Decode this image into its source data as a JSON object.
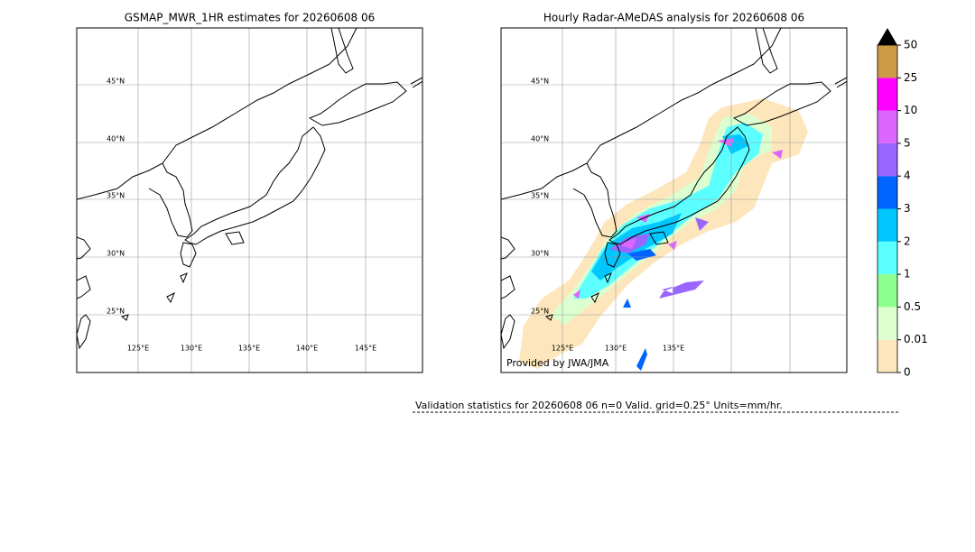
{
  "panels": [
    {
      "title": "GSMAP_MWR_1HR estimates for 20260608 06",
      "lat_labels": [
        "45°N",
        "40°N",
        "35°N",
        "30°N",
        "25°N"
      ],
      "lon_labels": [
        "125°E",
        "130°E",
        "135°E",
        "140°E",
        "145°E"
      ]
    },
    {
      "title": "Hourly Radar-AMeDAS analysis for 20260608 06",
      "lat_labels": [
        "45°N",
        "40°N",
        "35°N",
        "30°N",
        "25°N"
      ],
      "lon_labels": [
        "125°E",
        "130°E",
        "135°E"
      ],
      "credit": "Provided by JWA/JMA"
    }
  ],
  "colorbar": {
    "labels": [
      "0",
      "0.01",
      "0.5",
      "1",
      "2",
      "3",
      "4",
      "5",
      "10",
      "25",
      "50"
    ],
    "colors": [
      "#fde6bb",
      "#dcffd0",
      "#8cff8c",
      "#5cffff",
      "#00c8ff",
      "#0064ff",
      "#9966ff",
      "#dd66ff",
      "#ff00ff",
      "#cc9944"
    ]
  },
  "footer": "Validation statistics for 20260608 06  n=0 Valid. grid=0.25° Units=mm/hr."
}
